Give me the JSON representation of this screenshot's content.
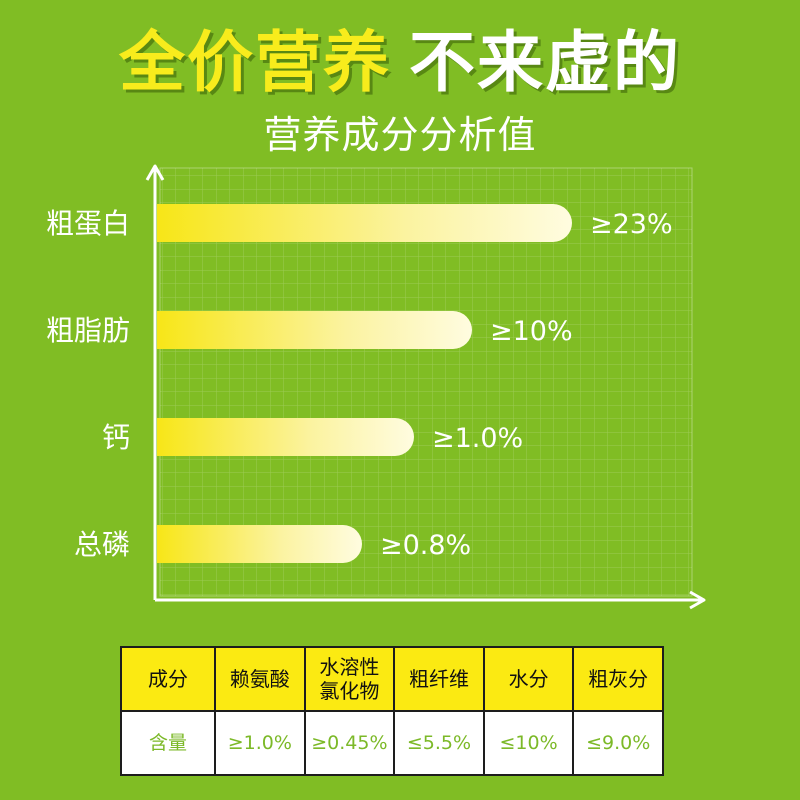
{
  "header": {
    "title_highlight": "全价营养",
    "title_rest": "不来虚的",
    "subtitle": "营养成分分析值"
  },
  "colors": {
    "background": "#80bd24",
    "highlight_text": "#f8ec1c",
    "bar_start": "#f7e617",
    "bar_end": "#fffce0",
    "table_header": "#fbea12",
    "table_value_text": "#7cb928"
  },
  "chart_data": {
    "type": "bar",
    "orientation": "horizontal",
    "title": "营养成分分析值",
    "categories": [
      "粗蛋白",
      "粗脂肪",
      "钙",
      "总磷"
    ],
    "values": [
      23,
      10,
      1.0,
      0.8
    ],
    "value_labels": [
      "≥23%",
      "≥10%",
      "≥1.0%",
      "≥0.8%"
    ],
    "grid": true,
    "legend": "none"
  },
  "table": {
    "headers": [
      "成分",
      "赖氨酸",
      "水溶性氯化物",
      "粗纤维",
      "水分",
      "粗灰分"
    ],
    "row_label": "含量",
    "values": [
      "≥1.0%",
      "≥0.45%",
      "≤5.5%",
      "≤10%",
      "≤9.0%"
    ]
  }
}
